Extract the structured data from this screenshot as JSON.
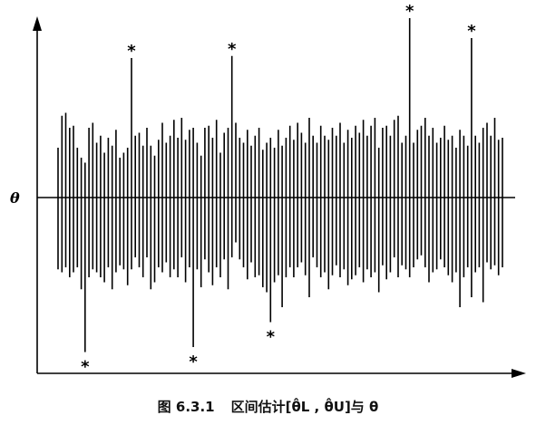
{
  "figure": {
    "axis_label_theta": "θ",
    "asterisk": "*",
    "intervals": [
      [
        -0.72,
        0.5
      ],
      [
        -0.75,
        0.82
      ],
      [
        -0.7,
        0.85
      ],
      [
        -0.8,
        0.7
      ],
      [
        -0.75,
        0.72
      ],
      [
        -0.7,
        0.5
      ],
      [
        -0.92,
        0.4
      ],
      [
        -1.55,
        0.35
      ],
      [
        -0.8,
        0.7
      ],
      [
        -0.72,
        0.75
      ],
      [
        -0.75,
        0.55
      ],
      [
        -0.8,
        0.62
      ],
      [
        -0.85,
        0.45
      ],
      [
        -0.7,
        0.6
      ],
      [
        -0.92,
        0.52
      ],
      [
        -0.75,
        0.68
      ],
      [
        -0.68,
        0.4
      ],
      [
        -0.72,
        0.45
      ],
      [
        -0.88,
        0.5
      ],
      [
        -0.72,
        1.4
      ],
      [
        -0.6,
        0.62
      ],
      [
        -0.7,
        0.65
      ],
      [
        -0.8,
        0.52
      ],
      [
        -0.6,
        0.7
      ],
      [
        -0.92,
        0.52
      ],
      [
        -0.85,
        0.42
      ],
      [
        -0.7,
        0.58
      ],
      [
        -0.75,
        0.75
      ],
      [
        -0.65,
        0.55
      ],
      [
        -0.8,
        0.62
      ],
      [
        -0.72,
        0.78
      ],
      [
        -0.8,
        0.6
      ],
      [
        -0.6,
        0.8
      ],
      [
        -0.85,
        0.58
      ],
      [
        -0.7,
        0.68
      ],
      [
        -1.5,
        0.7
      ],
      [
        -0.72,
        0.55
      ],
      [
        -0.9,
        0.42
      ],
      [
        -0.62,
        0.7
      ],
      [
        -0.75,
        0.72
      ],
      [
        -0.88,
        0.6
      ],
      [
        -0.7,
        0.78
      ],
      [
        -0.8,
        0.45
      ],
      [
        -0.62,
        0.65
      ],
      [
        -0.92,
        0.7
      ],
      [
        -0.6,
        1.42
      ],
      [
        -0.45,
        0.75
      ],
      [
        -0.62,
        0.6
      ],
      [
        -0.7,
        0.55
      ],
      [
        -0.82,
        0.68
      ],
      [
        -0.65,
        0.52
      ],
      [
        -0.8,
        0.62
      ],
      [
        -0.78,
        0.7
      ],
      [
        -0.9,
        0.48
      ],
      [
        -0.95,
        0.55
      ],
      [
        -1.25,
        0.6
      ],
      [
        -0.85,
        0.5
      ],
      [
        -0.78,
        0.68
      ],
      [
        -1.1,
        0.52
      ],
      [
        -0.8,
        0.6
      ],
      [
        -0.7,
        0.72
      ],
      [
        -0.8,
        0.58
      ],
      [
        -0.7,
        0.75
      ],
      [
        -0.65,
        0.65
      ],
      [
        -0.78,
        0.55
      ],
      [
        -1.0,
        0.8
      ],
      [
        -0.6,
        0.62
      ],
      [
        -0.7,
        0.55
      ],
      [
        -0.8,
        0.72
      ],
      [
        -0.75,
        0.62
      ],
      [
        -0.92,
        0.58
      ],
      [
        -0.78,
        0.7
      ],
      [
        -0.68,
        0.62
      ],
      [
        -0.8,
        0.75
      ],
      [
        -0.72,
        0.55
      ],
      [
        -0.88,
        0.68
      ],
      [
        -0.82,
        0.6
      ],
      [
        -0.78,
        0.72
      ],
      [
        -0.7,
        0.65
      ],
      [
        -0.85,
        0.78
      ],
      [
        -0.72,
        0.62
      ],
      [
        -0.8,
        0.72
      ],
      [
        -0.75,
        0.8
      ],
      [
        -0.95,
        0.5
      ],
      [
        -0.68,
        0.7
      ],
      [
        -0.82,
        0.72
      ],
      [
        -0.75,
        0.62
      ],
      [
        -0.6,
        0.78
      ],
      [
        -0.8,
        0.82
      ],
      [
        -0.68,
        0.55
      ],
      [
        -0.72,
        0.62
      ],
      [
        -0.8,
        1.8
      ],
      [
        -0.7,
        0.55
      ],
      [
        -0.62,
        0.68
      ],
      [
        -0.58,
        0.72
      ],
      [
        -0.7,
        0.8
      ],
      [
        -0.85,
        0.62
      ],
      [
        -0.75,
        0.7
      ],
      [
        -0.72,
        0.55
      ],
      [
        -0.62,
        0.6
      ],
      [
        -0.7,
        0.72
      ],
      [
        -0.78,
        0.58
      ],
      [
        -0.85,
        0.62
      ],
      [
        -0.75,
        0.5
      ],
      [
        -1.1,
        0.68
      ],
      [
        -0.8,
        0.62
      ],
      [
        -0.7,
        0.52
      ],
      [
        -1.0,
        1.6
      ],
      [
        -0.75,
        0.62
      ],
      [
        -0.7,
        0.55
      ],
      [
        -1.05,
        0.7
      ],
      [
        -0.65,
        0.75
      ],
      [
        -0.72,
        0.62
      ],
      [
        -0.68,
        0.8
      ],
      [
        -0.78,
        0.58
      ],
      [
        -0.7,
        0.6
      ]
    ]
  },
  "caption": {
    "fig_number": "图 6.3.1",
    "text": "区间估计[θ̂L , θ̂U]与 θ"
  }
}
